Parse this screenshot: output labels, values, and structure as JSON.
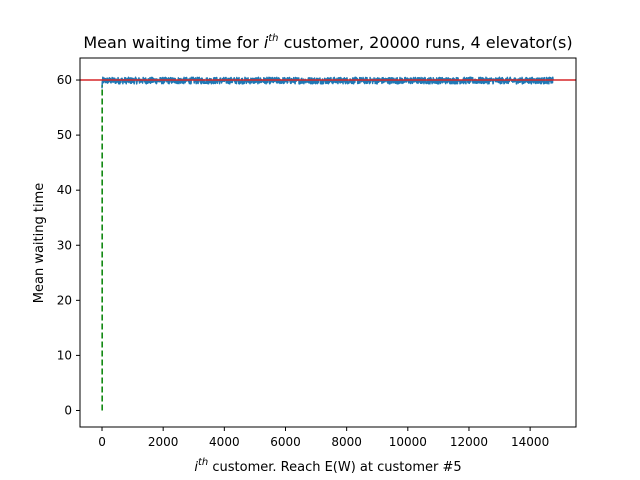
{
  "chart_data": {
    "type": "line",
    "title": {
      "prefix": "Mean waiting time for ",
      "base": "i",
      "superscript": "th",
      "suffix": " customer, 20000 runs, 4 elevator(s)"
    },
    "xlabel": {
      "base": "i",
      "superscript": "th",
      "suffix": " customer. Reach E(W) at customer #5"
    },
    "ylabel": "Mean waiting time",
    "xlim": [
      -720,
      15500
    ],
    "ylim": [
      -3,
      64
    ],
    "x_ticks": [
      0,
      2000,
      4000,
      6000,
      8000,
      10000,
      12000,
      14000
    ],
    "y_ticks": [
      0,
      10,
      20,
      30,
      40,
      50,
      60
    ],
    "grid": false,
    "series": [
      {
        "style": "line",
        "color": "#1f77b4",
        "x_start": 0,
        "x_end": 14750,
        "mean": 59.9,
        "noise_amplitude": 0.6,
        "first_point": 58.5
      }
    ],
    "reference_lines": [
      {
        "orientation": "horizontal",
        "y": 60,
        "color": "#d62728",
        "style": "solid"
      },
      {
        "orientation": "vertical",
        "x": 5,
        "y_from": 0,
        "y_to": 59,
        "color": "#008000",
        "style": "dashed"
      }
    ]
  }
}
